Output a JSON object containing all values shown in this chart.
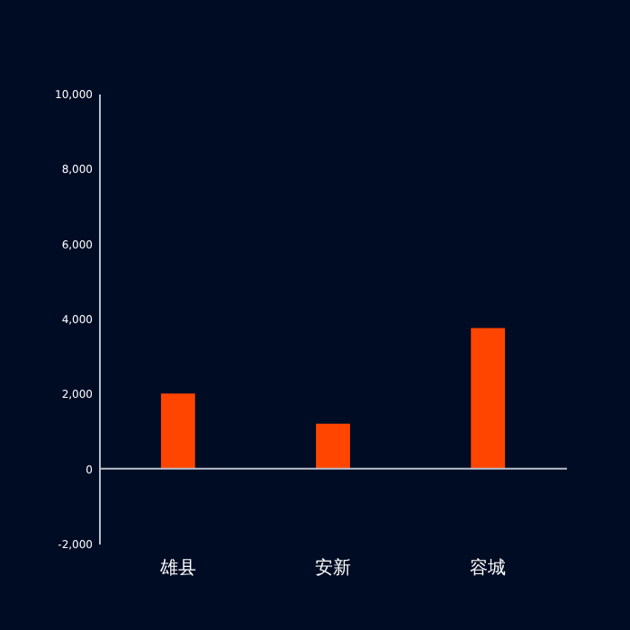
{
  "chart_data": {
    "type": "bar",
    "categories": [
      "雄县",
      "安新",
      "容城"
    ],
    "values": [
      2000,
      1200,
      3750
    ],
    "color": "#ff4500",
    "ylim": [
      -2000,
      10000
    ],
    "yticks": [
      {
        "value": -2000,
        "label": "-2,000"
      },
      0,
      {
        "value": 2000,
        "label": "2,000"
      },
      {
        "value": 4000,
        "label": "4,000"
      },
      {
        "value": 6000,
        "label": "6,000"
      },
      {
        "value": 8000,
        "label": "8,000"
      },
      {
        "value": 10000,
        "label": "10,000"
      }
    ],
    "grid": false,
    "ref_lines": [
      {
        "axis": "y",
        "value": 0,
        "color": "#b8bfcc"
      }
    ]
  }
}
